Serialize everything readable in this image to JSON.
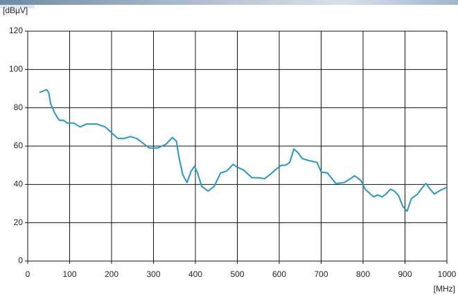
{
  "chart_data": {
    "type": "line",
    "y_label": "[dBµV]",
    "x_label": "[MHz]",
    "x": [
      28,
      45,
      50,
      55,
      65,
      75,
      85,
      95,
      110,
      125,
      140,
      165,
      185,
      200,
      215,
      230,
      245,
      260,
      275,
      290,
      310,
      330,
      345,
      355,
      360,
      370,
      380,
      390,
      398,
      405,
      415,
      430,
      445,
      460,
      475,
      490,
      500,
      515,
      535,
      550,
      565,
      580,
      590,
      605,
      615,
      625,
      635,
      645,
      655,
      670,
      690,
      700,
      715,
      735,
      755,
      770,
      780,
      795,
      805,
      815,
      825,
      835,
      845,
      855,
      865,
      875,
      885,
      895,
      905,
      915,
      930,
      940,
      950,
      960,
      970,
      985,
      995,
      1000
    ],
    "series": [
      {
        "color": "#1b9ad6",
        "values": [
          88,
          89.5,
          88,
          82,
          77,
          73.5,
          73.5,
          72,
          72,
          70,
          71.5,
          71.5,
          70,
          67,
          64,
          64,
          65,
          64,
          61.5,
          59,
          59,
          61,
          64.5,
          62.5,
          55,
          45,
          41,
          47,
          49.5,
          46,
          39,
          36.5,
          39,
          46,
          47,
          50.5,
          49,
          47.5,
          43.5,
          43.5,
          43,
          45.5,
          47.5,
          50,
          50,
          51.5,
          58.5,
          56.5,
          53.5,
          52.5,
          51.5,
          46.5,
          46,
          40.5,
          41,
          43,
          44.5,
          42,
          37.5,
          35.5,
          33.5,
          34.5,
          33.5,
          35,
          37.5,
          36.5,
          34,
          28.5,
          26,
          32.5,
          35,
          38,
          40.5,
          37.5,
          35,
          37,
          38,
          38.5
        ]
      }
    ],
    "xlim": [
      0,
      1000
    ],
    "ylim": [
      0,
      120
    ],
    "xticks": [
      0,
      100,
      200,
      300,
      400,
      500,
      600,
      700,
      800,
      900,
      1000
    ],
    "yticks": [
      0,
      20,
      40,
      60,
      80,
      100,
      120
    ],
    "grid": true
  }
}
